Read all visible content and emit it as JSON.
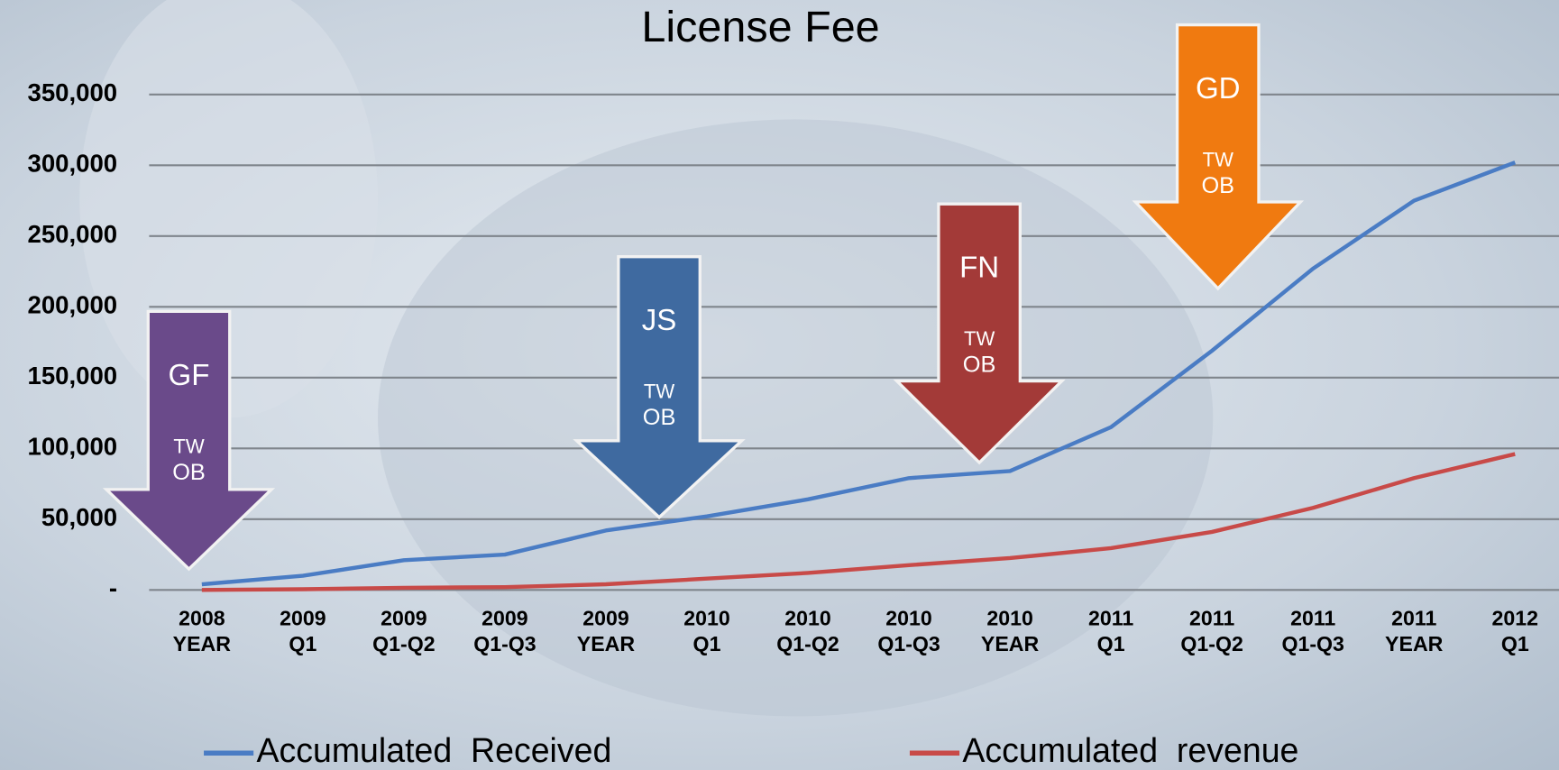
{
  "chart_data": {
    "type": "line",
    "title": "License Fee",
    "categories": [
      [
        "2008",
        "YEAR"
      ],
      [
        "2009",
        "Q1"
      ],
      [
        "2009",
        "Q1-Q2"
      ],
      [
        "2009",
        "Q1-Q3"
      ],
      [
        "2009",
        "YEAR"
      ],
      [
        "2010",
        "Q1"
      ],
      [
        "2010",
        "Q1-Q2"
      ],
      [
        "2010",
        "Q1-Q3"
      ],
      [
        "2010",
        "YEAR"
      ],
      [
        "2011",
        "Q1"
      ],
      [
        "2011",
        "Q1-Q2"
      ],
      [
        "2011",
        "Q1-Q3"
      ],
      [
        "2011",
        "YEAR"
      ],
      [
        "2012",
        "Q1"
      ]
    ],
    "series": [
      {
        "name": "Accumulated  Received",
        "color": "#4a7cc4",
        "values": [
          4000,
          10000,
          21000,
          25000,
          42000,
          52000,
          64000,
          79000,
          84000,
          115000,
          169000,
          227000,
          275000,
          302000
        ]
      },
      {
        "name": "Accumulated  revenue",
        "color": "#c84a48",
        "values": [
          0,
          500,
          1500,
          2000,
          4000,
          8000,
          12000,
          17500,
          22500,
          29500,
          41000,
          58000,
          79000,
          96000
        ]
      }
    ],
    "ylim": [
      0,
      350000
    ],
    "yticks": [
      {
        "value": 0,
        "label": "-"
      },
      {
        "value": 50000,
        "label": "50,000"
      },
      {
        "value": 100000,
        "label": "100,000"
      },
      {
        "value": 150000,
        "label": "150,000"
      },
      {
        "value": 200000,
        "label": "200,000"
      },
      {
        "value": 250000,
        "label": "250,000"
      },
      {
        "value": 300000,
        "label": "300,000"
      },
      {
        "value": 350000,
        "label": "350,000"
      }
    ],
    "grid": true,
    "annotations": [
      {
        "label": "GF",
        "sublabels": [
          "TW",
          "OB"
        ],
        "color": "#6a4a8a"
      },
      {
        "label": "JS",
        "sublabels": [
          "TW",
          "OB"
        ],
        "color": "#3f6aa0"
      },
      {
        "label": "FN",
        "sublabels": [
          "TW",
          "OB"
        ],
        "color": "#a33a38"
      },
      {
        "label": "GD",
        "sublabels": [
          "TW",
          "OB"
        ],
        "color": "#f07a10"
      }
    ]
  }
}
